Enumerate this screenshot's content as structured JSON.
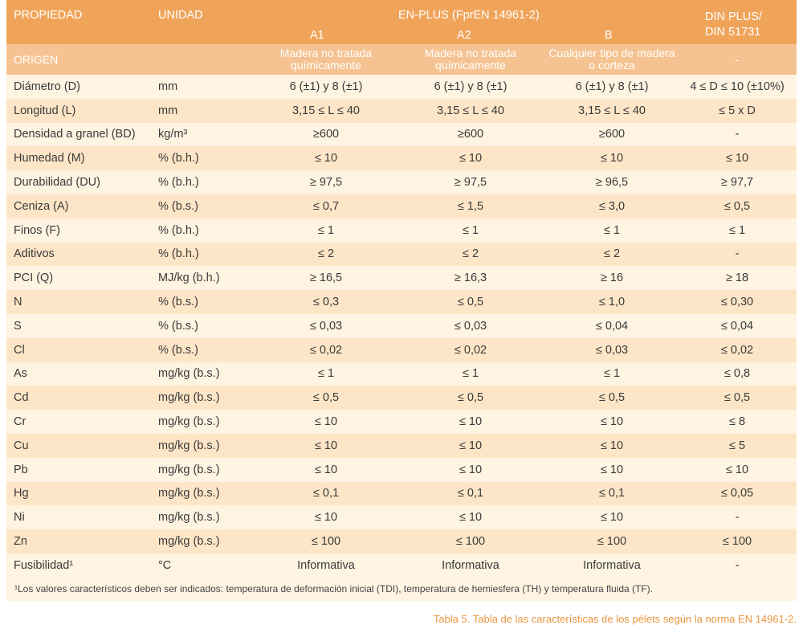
{
  "header": {
    "propiedad": "PROPIEDAD",
    "unidad": "UNIDAD",
    "enplus": "EN-PLUS (FprEN 14961-2)",
    "a1": "A1",
    "a2": "A2",
    "b": "B",
    "din_line1": "DIN PLUS/",
    "din_line2": "DIN 51731"
  },
  "origin": {
    "label": "ORIGEN",
    "a1": "Madera no tratada químicamente",
    "a2": "Madera no tratada químicamente",
    "b": "Cualquier tipo de madera o corteza",
    "din": "-"
  },
  "rows": [
    {
      "prop": "Diámetro (D)",
      "unit": "mm",
      "a1": "6 (±1) y 8 (±1)",
      "a2": "6 (±1) y 8 (±1)",
      "b": "6 (±1) y 8 (±1)",
      "din": "4 ≤ D ≤ 10 (±10%)"
    },
    {
      "prop": "Longitud (L)",
      "unit": "mm",
      "a1": "3,15 ≤ L ≤ 40",
      "a2": "3,15 ≤ L ≤ 40",
      "b": "3,15 ≤ L ≤ 40",
      "din": "≤ 5 x D"
    },
    {
      "prop": "Densidad a granel (BD)",
      "unit": "kg/m³",
      "a1": "≥600",
      "a2": "≥600",
      "b": "≥600",
      "din": "-"
    },
    {
      "prop": "Humedad (M)",
      "unit": "% (b.h.)",
      "a1": "≤ 10",
      "a2": "≤ 10",
      "b": "≤ 10",
      "din": "≤ 10"
    },
    {
      "prop": "Durabilidad (DU)",
      "unit": "% (b.h.)",
      "a1": "≥ 97,5",
      "a2": "≥ 97,5",
      "b": "≥ 96,5",
      "din": "≥ 97,7"
    },
    {
      "prop": "Ceniza (A)",
      "unit": "% (b.s.)",
      "a1": "≤ 0,7",
      "a2": "≤ 1,5",
      "b": "≤ 3,0",
      "din": "≤ 0,5"
    },
    {
      "prop": "Finos (F)",
      "unit": "% (b.h.)",
      "a1": "≤ 1",
      "a2": "≤ 1",
      "b": "≤ 1",
      "din": "≤ 1"
    },
    {
      "prop": "Aditivos",
      "unit": "% (b.h.)",
      "a1": "≤ 2",
      "a2": "≤ 2",
      "b": "≤ 2",
      "din": "-"
    },
    {
      "prop": "PCI (Q)",
      "unit": "MJ/kg (b.h.)",
      "a1": "≥ 16,5",
      "a2": "≥ 16,3",
      "b": "≥ 16",
      "din": "≥ 18"
    },
    {
      "prop": "N",
      "unit": "% (b.s.)",
      "a1": "≤ 0,3",
      "a2": "≤ 0,5",
      "b": "≤ 1,0",
      "din": "≤ 0,30"
    },
    {
      "prop": "S",
      "unit": "% (b.s.)",
      "a1": "≤ 0,03",
      "a2": "≤ 0,03",
      "b": "≤ 0,04",
      "din": "≤ 0,04"
    },
    {
      "prop": "Cl",
      "unit": "% (b.s.)",
      "a1": "≤ 0,02",
      "a2": "≤ 0,02",
      "b": "≤ 0,03",
      "din": "≤ 0,02"
    },
    {
      "prop": "As",
      "unit": "mg/kg (b.s.)",
      "a1": "≤ 1",
      "a2": "≤ 1",
      "b": "≤ 1",
      "din": "≤ 0,8"
    },
    {
      "prop": "Cd",
      "unit": "mg/kg (b.s.)",
      "a1": "≤ 0,5",
      "a2": "≤ 0,5",
      "b": "≤ 0,5",
      "din": "≤ 0,5"
    },
    {
      "prop": "Cr",
      "unit": "mg/kg (b.s.)",
      "a1": "≤ 10",
      "a2": "≤ 10",
      "b": "≤ 10",
      "din": "≤ 8"
    },
    {
      "prop": "Cu",
      "unit": "mg/kg (b.s.)",
      "a1": "≤ 10",
      "a2": "≤ 10",
      "b": "≤ 10",
      "din": "≤ 5"
    },
    {
      "prop": "Pb",
      "unit": "mg/kg (b.s.)",
      "a1": "≤ 10",
      "a2": "≤ 10",
      "b": "≤ 10",
      "din": "≤ 10"
    },
    {
      "prop": "Hg",
      "unit": "mg/kg (b.s.)",
      "a1": "≤ 0,1",
      "a2": "≤ 0,1",
      "b": "≤ 0,1",
      "din": "≤ 0,05"
    },
    {
      "prop": "Ni",
      "unit": "mg/kg (b.s.)",
      "a1": "≤ 10",
      "a2": "≤ 10",
      "b": "≤ 10",
      "din": "-"
    },
    {
      "prop": "Zn",
      "unit": "mg/kg (b.s.)",
      "a1": "≤ 100",
      "a2": "≤ 100",
      "b": "≤ 100",
      "din": "≤ 100"
    },
    {
      "prop": "Fusibilidad¹",
      "unit": "°C",
      "a1": "Informativa",
      "a2": "Informativa",
      "b": "Informativa",
      "din": "-"
    }
  ],
  "footnote": "¹Los valores característicos deben ser indicados: temperatura de deformación inicial (TDI), temperatura de hemiesfera (TH) y temperatura fluida (TF).",
  "caption": "Tabla 5. Tabla de las características de los pélets según la norma EN 14961-2.",
  "colors": {
    "header_bg": "#f0a45a",
    "origin_bg": "#f5c391",
    "row_light": "#fff3e2",
    "row_dark": "#fde6c7",
    "caption": "#e9953e"
  }
}
